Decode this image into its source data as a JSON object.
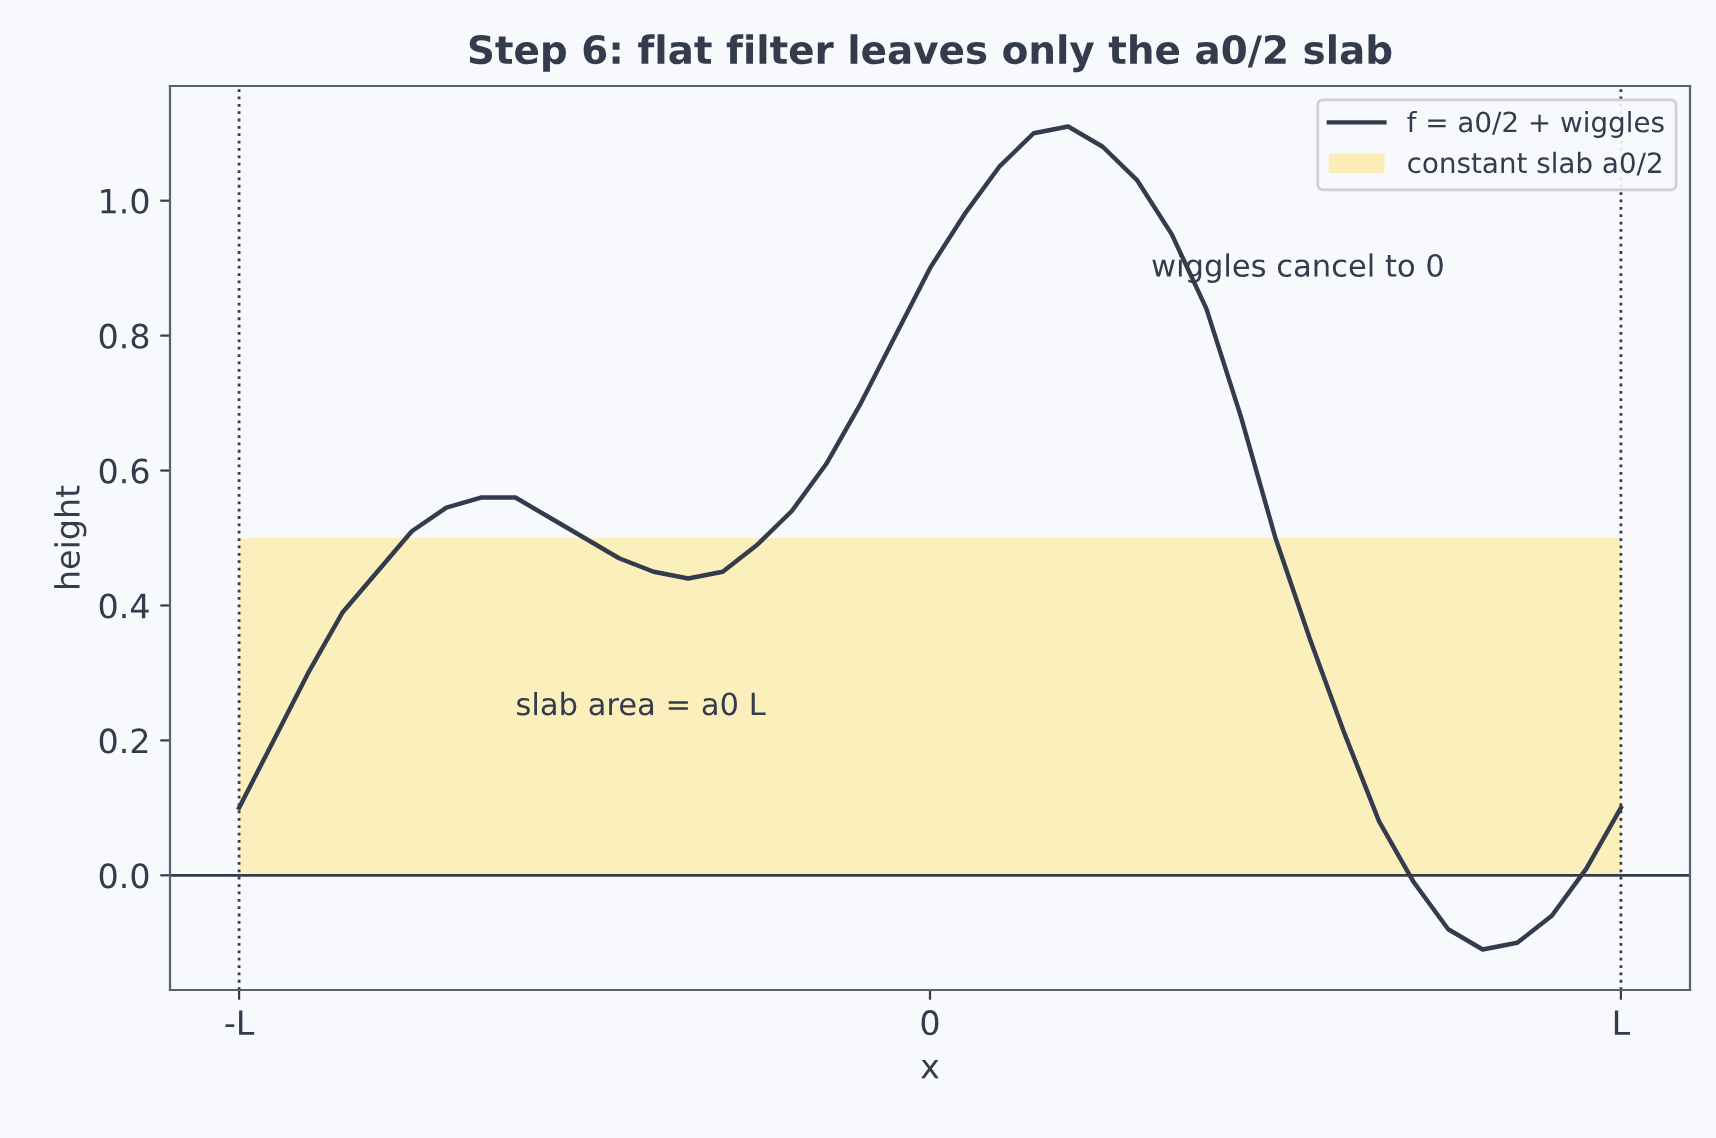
{
  "chart_data": {
    "type": "line",
    "title": "Step 6: flat filter leaves only the a0/2 slab",
    "xlabel": "x",
    "ylabel": "height",
    "categories": [
      "-L",
      null,
      null,
      null,
      null,
      null,
      null,
      null,
      null,
      null,
      null,
      null,
      null,
      null,
      null,
      null,
      null,
      null,
      null,
      null,
      "0",
      null,
      null,
      null,
      null,
      null,
      null,
      null,
      null,
      null,
      null,
      null,
      null,
      null,
      null,
      null,
      null,
      null,
      null,
      null,
      "L"
    ],
    "series": [
      {
        "name": "f = a0/2 + wiggles",
        "color": "#343b4c",
        "values": [
          0.1,
          0.2,
          0.3,
          0.39,
          0.45,
          0.51,
          0.545,
          0.56,
          0.56,
          0.53,
          0.5,
          0.47,
          0.45,
          0.44,
          0.45,
          0.49,
          0.54,
          0.61,
          0.7,
          0.8,
          0.9,
          0.98,
          1.05,
          1.1,
          1.11,
          1.08,
          1.03,
          0.95,
          0.84,
          0.68,
          0.5,
          0.35,
          0.21,
          0.08,
          -0.01,
          -0.08,
          -0.11,
          -0.1,
          -0.06,
          0.01,
          0.1
        ]
      },
      {
        "name": "constant slab a0/2",
        "color": "#fbedb5",
        "type": "area",
        "values": [
          0.5,
          0.5,
          0.5,
          0.5,
          0.5,
          0.5,
          0.5,
          0.5,
          0.5,
          0.5,
          0.5,
          0.5,
          0.5,
          0.5,
          0.5,
          0.5,
          0.5,
          0.5,
          0.5,
          0.5,
          0.5,
          0.5,
          0.5,
          0.5,
          0.5,
          0.5,
          0.5,
          0.5,
          0.5,
          0.5,
          0.5,
          0.5,
          0.5,
          0.5,
          0.5,
          0.5,
          0.5,
          0.5,
          0.5,
          0.5,
          0.5
        ]
      }
    ],
    "ylim": [
      -0.17,
      1.17
    ],
    "yticks": [
      {
        "value": 0,
        "label": "0.0"
      },
      {
        "value": 0.2,
        "label": "0.2"
      },
      {
        "value": 0.4,
        "label": "0.4"
      },
      {
        "value": 0.6,
        "label": "0.6"
      },
      {
        "value": 0.8,
        "label": "0.8"
      },
      {
        "value": 1,
        "label": "1.0"
      }
    ],
    "ref_lines": [
      {
        "axis": "x",
        "value": "-L",
        "line_style": "dotted"
      },
      {
        "axis": "x",
        "value": "L",
        "line_style": "dotted"
      },
      {
        "axis": "y",
        "value": 0,
        "line_style": "solid"
      }
    ],
    "annotations": [
      "wiggles cancel to 0",
      "slab area = a0 L"
    ],
    "legend": "top right",
    "grid": false
  }
}
